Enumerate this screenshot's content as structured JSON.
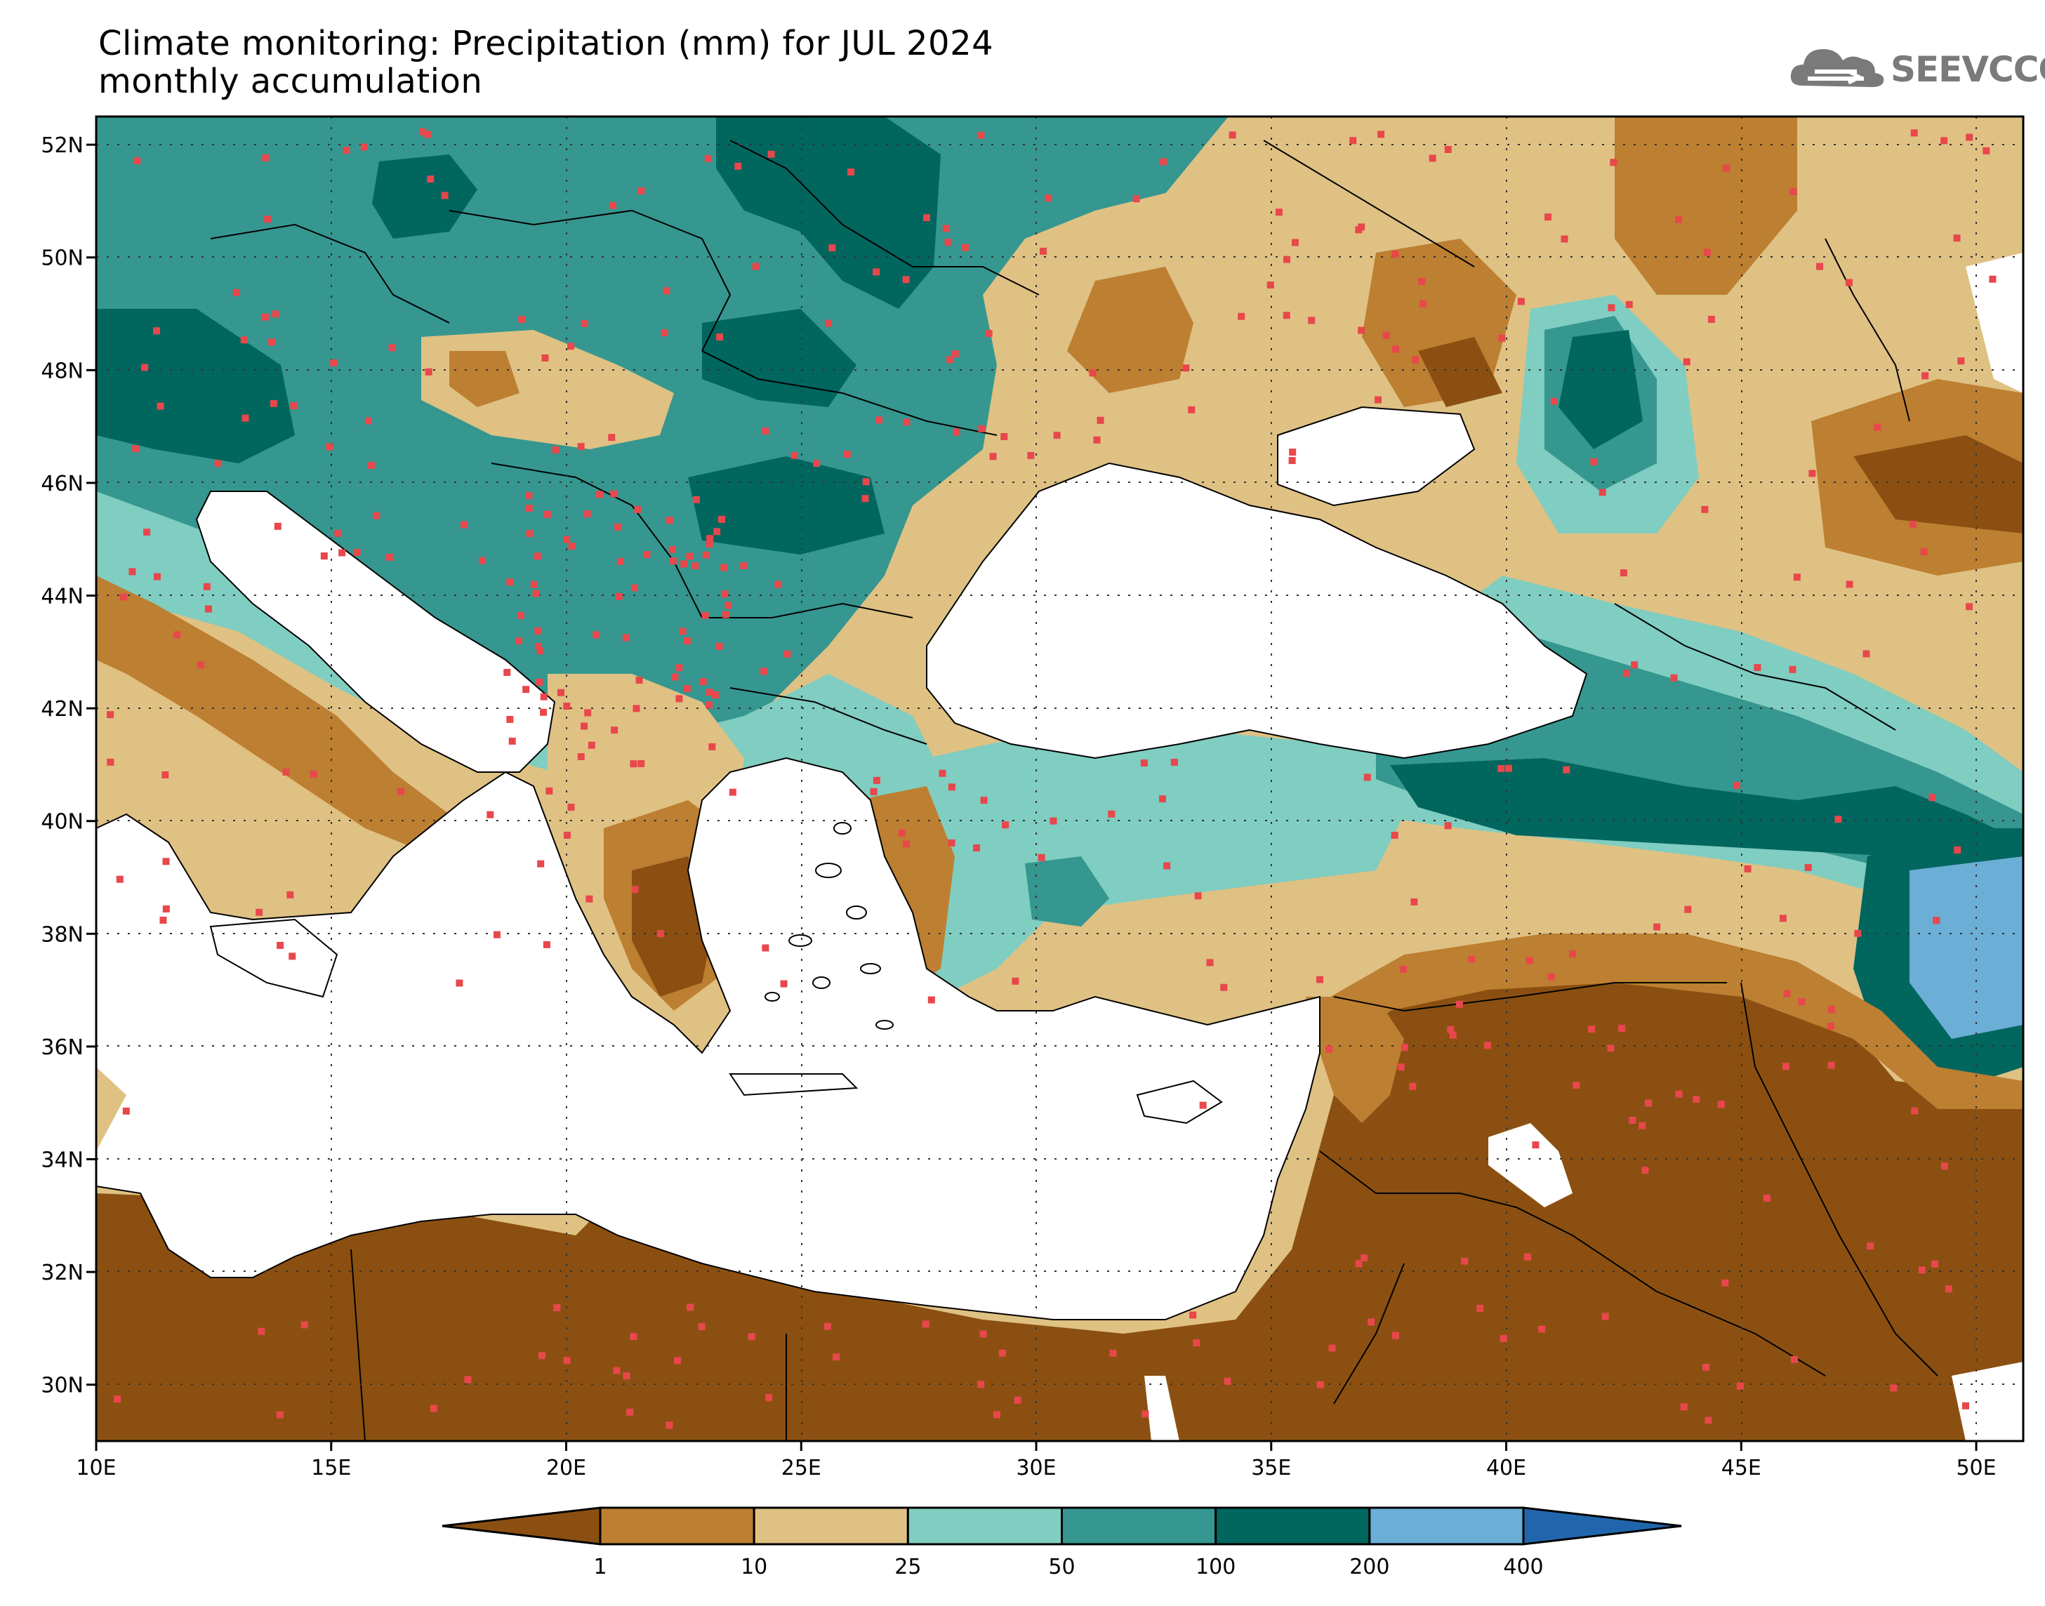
{
  "title_line1": "Climate monitoring: Precipitation (mm) for JUL 2024",
  "title_line2": "monthly accumulation",
  "logo_text": "SEEVCCC",
  "map": {
    "lon_range": [
      10,
      51
    ],
    "lat_range": [
      29,
      52.5
    ],
    "lon_ticks": [
      "10E",
      "15E",
      "20E",
      "25E",
      "30E",
      "35E",
      "40E",
      "45E",
      "50E"
    ],
    "lat_ticks": [
      "52N",
      "50N",
      "48N",
      "46N",
      "44N",
      "42N",
      "40N",
      "38N",
      "36N",
      "34N",
      "32N",
      "30N"
    ],
    "grid": "dotted"
  },
  "legend": {
    "labels": [
      "1",
      "10",
      "25",
      "50",
      "100",
      "200",
      "400"
    ],
    "colors": [
      "#8b5011",
      "#bd7f31",
      "#dfc184",
      "#80cdc1",
      "#35978f",
      "#01665e",
      "#6baed6",
      "#2166ac"
    ]
  },
  "colors": {
    "station_marker": "#e8474c",
    "sea": "#ffffff",
    "coast": "#000000"
  }
}
